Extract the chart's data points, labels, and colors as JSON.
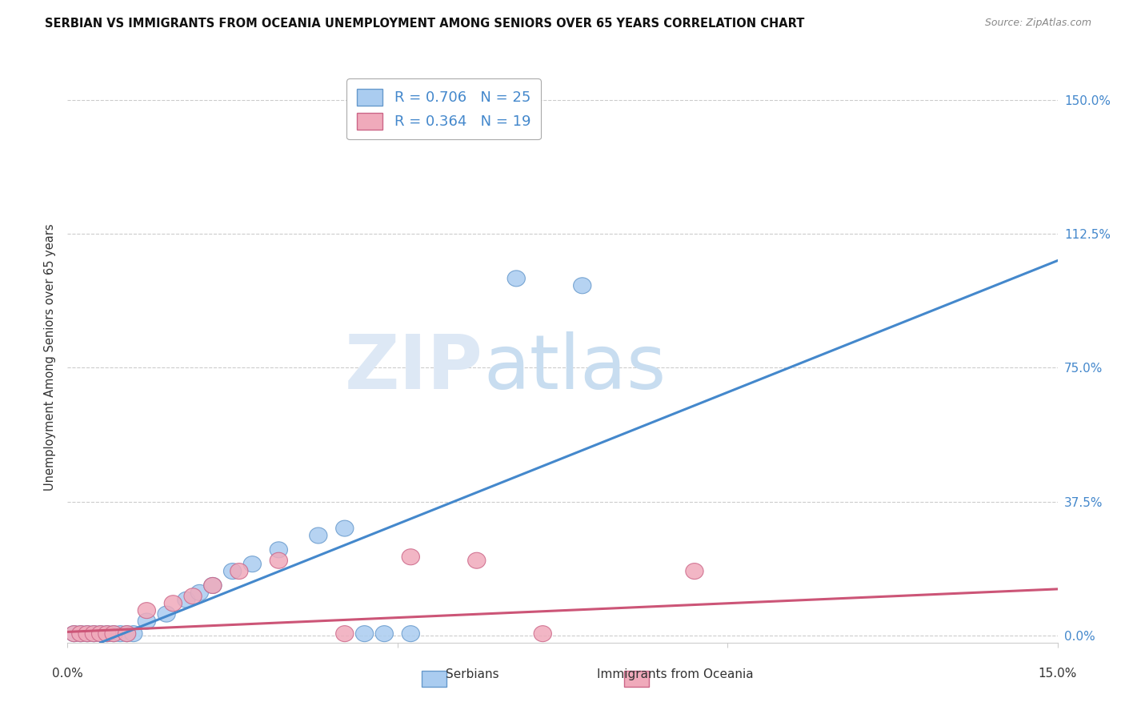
{
  "title": "SERBIAN VS IMMIGRANTS FROM OCEANIA UNEMPLOYMENT AMONG SENIORS OVER 65 YEARS CORRELATION CHART",
  "source": "Source: ZipAtlas.com",
  "ylabel": "Unemployment Among Seniors over 65 years",
  "yticks": [
    0.0,
    0.375,
    0.75,
    1.125,
    1.5
  ],
  "ytick_labels": [
    "0.0%",
    "37.5%",
    "75.0%",
    "112.5%",
    "150.0%"
  ],
  "xmin": 0.0,
  "xmax": 0.15,
  "ymin": -0.02,
  "ymax": 1.58,
  "legend_r1": "R = 0.706",
  "legend_n1": "N = 25",
  "legend_r2": "R = 0.364",
  "legend_n2": "N = 19",
  "color_serbian_face": "#aaccf0",
  "color_serbian_edge": "#6699cc",
  "color_oceania_face": "#f0aabb",
  "color_oceania_edge": "#cc6688",
  "color_serbian_line": "#4488cc",
  "color_oceania_line": "#cc5577",
  "serbian_x": [
    0.001,
    0.002,
    0.003,
    0.004,
    0.005,
    0.006,
    0.007,
    0.008,
    0.009,
    0.01,
    0.012,
    0.015,
    0.018,
    0.02,
    0.022,
    0.025,
    0.028,
    0.032,
    0.038,
    0.042,
    0.045,
    0.048,
    0.052,
    0.068,
    0.078
  ],
  "serbian_y": [
    0.005,
    0.005,
    0.005,
    0.005,
    0.005,
    0.005,
    0.005,
    0.005,
    0.005,
    0.005,
    0.04,
    0.06,
    0.1,
    0.12,
    0.14,
    0.18,
    0.2,
    0.24,
    0.28,
    0.3,
    0.005,
    0.005,
    0.005,
    1.0,
    0.98
  ],
  "oceania_x": [
    0.001,
    0.002,
    0.003,
    0.004,
    0.005,
    0.006,
    0.007,
    0.009,
    0.012,
    0.016,
    0.019,
    0.022,
    0.026,
    0.032,
    0.042,
    0.052,
    0.062,
    0.072,
    0.095
  ],
  "oceania_y": [
    0.005,
    0.005,
    0.005,
    0.005,
    0.005,
    0.005,
    0.005,
    0.005,
    0.07,
    0.09,
    0.11,
    0.14,
    0.18,
    0.21,
    0.005,
    0.22,
    0.21,
    0.005,
    0.18
  ],
  "serbian_line_x": [
    0.005,
    0.15
  ],
  "serbian_line_y": [
    -0.02,
    1.05
  ],
  "oceania_line_x": [
    0.0,
    0.15
  ],
  "oceania_line_y": [
    0.01,
    0.13
  ],
  "gridline_color": "#cccccc",
  "gridline_style": "--",
  "spine_color": "#cccccc"
}
